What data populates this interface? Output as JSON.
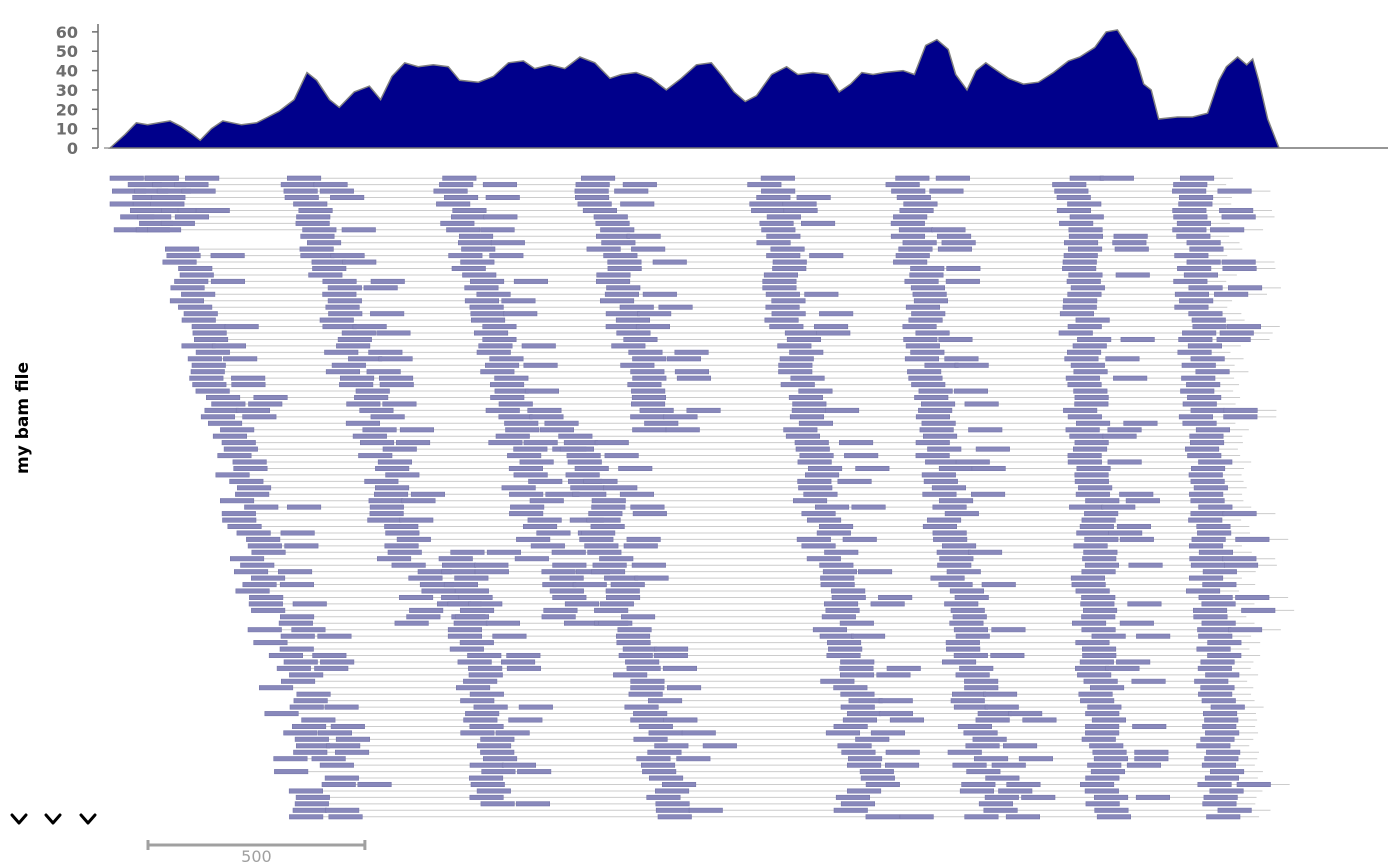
{
  "colors": {
    "coverage_fill": "#00008b",
    "coverage_stroke": "#808080",
    "read_fill": "#8888bb",
    "read_stroke": "#7777aa",
    "link_line": "#cccccc",
    "axis": "#6e6e6e",
    "scalebar": "#a0a0a0"
  },
  "track_label": "my bam file",
  "chart_data": [
    {
      "type": "area",
      "title": "",
      "xlabel": "",
      "ylabel": "",
      "ylim": [
        0,
        62
      ],
      "yticks": [
        0,
        10,
        20,
        30,
        40,
        50,
        60
      ],
      "xlim": [
        0,
        1700
      ],
      "grid": false,
      "coverage_profile": [
        [
          0,
          0
        ],
        [
          20,
          7
        ],
        [
          35,
          13
        ],
        [
          50,
          12
        ],
        [
          65,
          13
        ],
        [
          80,
          14
        ],
        [
          95,
          11
        ],
        [
          110,
          7
        ],
        [
          120,
          4
        ],
        [
          135,
          10
        ],
        [
          150,
          14
        ],
        [
          175,
          12
        ],
        [
          195,
          13
        ],
        [
          210,
          16
        ],
        [
          225,
          19
        ],
        [
          245,
          25
        ],
        [
          262,
          39
        ],
        [
          275,
          35
        ],
        [
          292,
          25
        ],
        [
          305,
          21
        ],
        [
          325,
          29
        ],
        [
          345,
          32
        ],
        [
          360,
          25
        ],
        [
          375,
          37
        ],
        [
          392,
          44
        ],
        [
          410,
          42
        ],
        [
          430,
          43
        ],
        [
          450,
          42
        ],
        [
          465,
          35
        ],
        [
          490,
          34
        ],
        [
          510,
          37
        ],
        [
          530,
          44
        ],
        [
          550,
          45
        ],
        [
          565,
          41
        ],
        [
          585,
          43
        ],
        [
          605,
          41
        ],
        [
          625,
          47
        ],
        [
          645,
          44
        ],
        [
          665,
          36
        ],
        [
          680,
          38
        ],
        [
          700,
          39
        ],
        [
          720,
          36
        ],
        [
          740,
          30
        ],
        [
          760,
          36
        ],
        [
          780,
          43
        ],
        [
          800,
          44
        ],
        [
          815,
          37
        ],
        [
          830,
          29
        ],
        [
          845,
          24
        ],
        [
          860,
          27
        ],
        [
          880,
          38
        ],
        [
          900,
          42
        ],
        [
          915,
          38
        ],
        [
          935,
          39
        ],
        [
          955,
          38
        ],
        [
          970,
          29
        ],
        [
          985,
          33
        ],
        [
          1000,
          39
        ],
        [
          1015,
          38
        ],
        [
          1030,
          39
        ],
        [
          1055,
          40
        ],
        [
          1070,
          38
        ],
        [
          1085,
          53
        ],
        [
          1100,
          56
        ],
        [
          1115,
          51
        ],
        [
          1125,
          38
        ],
        [
          1140,
          30
        ],
        [
          1152,
          40
        ],
        [
          1165,
          44
        ],
        [
          1180,
          40
        ],
        [
          1195,
          36
        ],
        [
          1215,
          33
        ],
        [
          1235,
          34
        ],
        [
          1255,
          39
        ],
        [
          1275,
          45
        ],
        [
          1290,
          47
        ],
        [
          1310,
          52
        ],
        [
          1325,
          60
        ],
        [
          1340,
          61
        ],
        [
          1355,
          52
        ],
        [
          1365,
          46
        ],
        [
          1375,
          33
        ],
        [
          1385,
          30
        ],
        [
          1395,
          15
        ],
        [
          1420,
          16
        ],
        [
          1440,
          16
        ],
        [
          1460,
          18
        ],
        [
          1475,
          35
        ],
        [
          1485,
          42
        ],
        [
          1500,
          47
        ],
        [
          1512,
          43
        ],
        [
          1520,
          46
        ],
        [
          1528,
          35
        ],
        [
          1540,
          15
        ],
        [
          1555,
          0
        ],
        [
          1700,
          0
        ]
      ]
    },
    {
      "type": "scatter",
      "title": "",
      "description_of_marks": "",
      "xlim": [
        0,
        1700
      ],
      "rows": 100,
      "read_length": 70,
      "waves": [
        [
          0,
          0,
          9,
          0.5,
          25
        ],
        [
          35,
          0,
          9,
          0.5,
          25
        ],
        [
          75,
          11,
          100,
          2.2,
          0
        ],
        [
          235,
          0,
          70,
          2.5,
          0
        ],
        [
          435,
          0,
          70,
          2.2,
          0
        ],
        [
          625,
          0,
          40,
          2.0,
          0
        ],
        [
          445,
          58,
          98,
          1.2,
          0
        ],
        [
          605,
          40,
          100,
          2.2,
          0
        ],
        [
          855,
          0,
          100,
          1.4,
          0
        ],
        [
          1040,
          0,
          100,
          1.1,
          0
        ],
        [
          1265,
          0,
          100,
          0.4,
          0
        ],
        [
          1420,
          0,
          100,
          0.4,
          0
        ]
      ]
    }
  ],
  "scalebar": {
    "length": 500,
    "label": "500"
  },
  "controls": [
    {
      "name": "collapse-track-1-icon"
    },
    {
      "name": "collapse-track-2-icon"
    },
    {
      "name": "collapse-track-3-icon"
    }
  ]
}
